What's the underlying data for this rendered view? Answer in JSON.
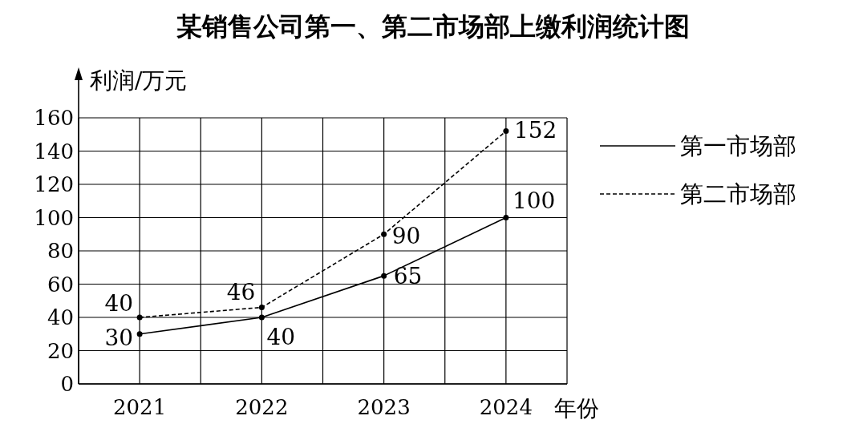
{
  "chart_data": {
    "type": "line",
    "title": "某销售公司第一、第二市场部上缴利润统计图",
    "xlabel": "年份",
    "ylabel": "利润/万元",
    "x": [
      2021,
      2022,
      2023,
      2024
    ],
    "xlim": [
      2020.5,
      2024.5
    ],
    "xticks": [
      {
        "value": 2020.5,
        "label": null
      },
      {
        "value": 2021,
        "label": "2021"
      },
      {
        "value": 2021.5,
        "label": null
      },
      {
        "value": 2022,
        "label": "2022"
      },
      {
        "value": 2022.5,
        "label": null
      },
      {
        "value": 2023,
        "label": "2023"
      },
      {
        "value": 2023.5,
        "label": null
      },
      {
        "value": 2024,
        "label": "2024"
      },
      {
        "value": 2024.5,
        "label": null
      }
    ],
    "ylim": [
      0,
      160
    ],
    "yticks": [
      0,
      20,
      40,
      60,
      80,
      100,
      120,
      140,
      160
    ],
    "grid": true,
    "legend": "right",
    "marker": "circle",
    "data_labels": true,
    "series": [
      {
        "name": "第一市场部",
        "color": "#000000",
        "line_style": "solid",
        "values": [
          30,
          40,
          65,
          100
        ]
      },
      {
        "name": "第二市场部",
        "color": "#000000",
        "line_style": "dashed",
        "values": [
          40,
          46,
          90,
          152
        ]
      }
    ]
  }
}
